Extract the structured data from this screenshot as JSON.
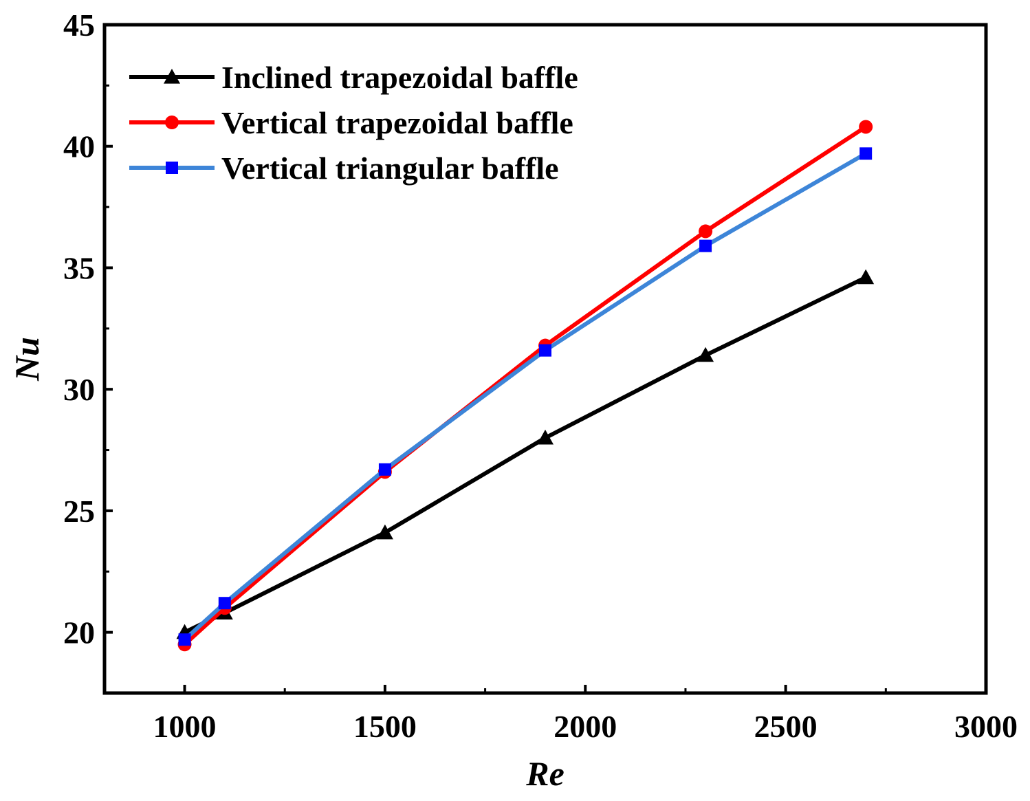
{
  "chart_data": {
    "type": "line",
    "title": "",
    "xlabel": "Re",
    "ylabel": "Nu",
    "xlim": [
      800,
      3000
    ],
    "ylim": [
      17.5,
      45
    ],
    "xticks": [
      1000,
      1500,
      2000,
      2500,
      3000
    ],
    "yticks": [
      20,
      25,
      30,
      35,
      40,
      45
    ],
    "x_tick_labels": [
      "1000",
      "1500",
      "2000",
      "2500",
      "3000"
    ],
    "y_tick_labels": [
      "20",
      "25",
      "30",
      "35",
      "40",
      "45"
    ],
    "grid": false,
    "legend_position": "top-left",
    "series": [
      {
        "name": "Inclined trapezoidal baffle",
        "color": "#000000",
        "marker": "triangle",
        "x": [
          1000,
          1100,
          1500,
          1900,
          2300,
          2700
        ],
        "y": [
          20.0,
          20.8,
          24.1,
          28.0,
          31.4,
          34.6
        ]
      },
      {
        "name": "Vertical trapezoidal baffle",
        "color": "#ff0000",
        "marker": "circle",
        "x": [
          1000,
          1100,
          1500,
          1900,
          2300,
          2700
        ],
        "y": [
          19.5,
          21.0,
          26.6,
          31.8,
          36.5,
          40.8
        ]
      },
      {
        "name": "Vertical triangular baffle",
        "color": "#3d85d8",
        "marker": "square",
        "marker_color": "#0000ff",
        "x": [
          1000,
          1100,
          1500,
          1900,
          2300,
          2700
        ],
        "y": [
          19.7,
          21.2,
          26.7,
          31.6,
          35.9,
          39.7
        ]
      }
    ]
  }
}
